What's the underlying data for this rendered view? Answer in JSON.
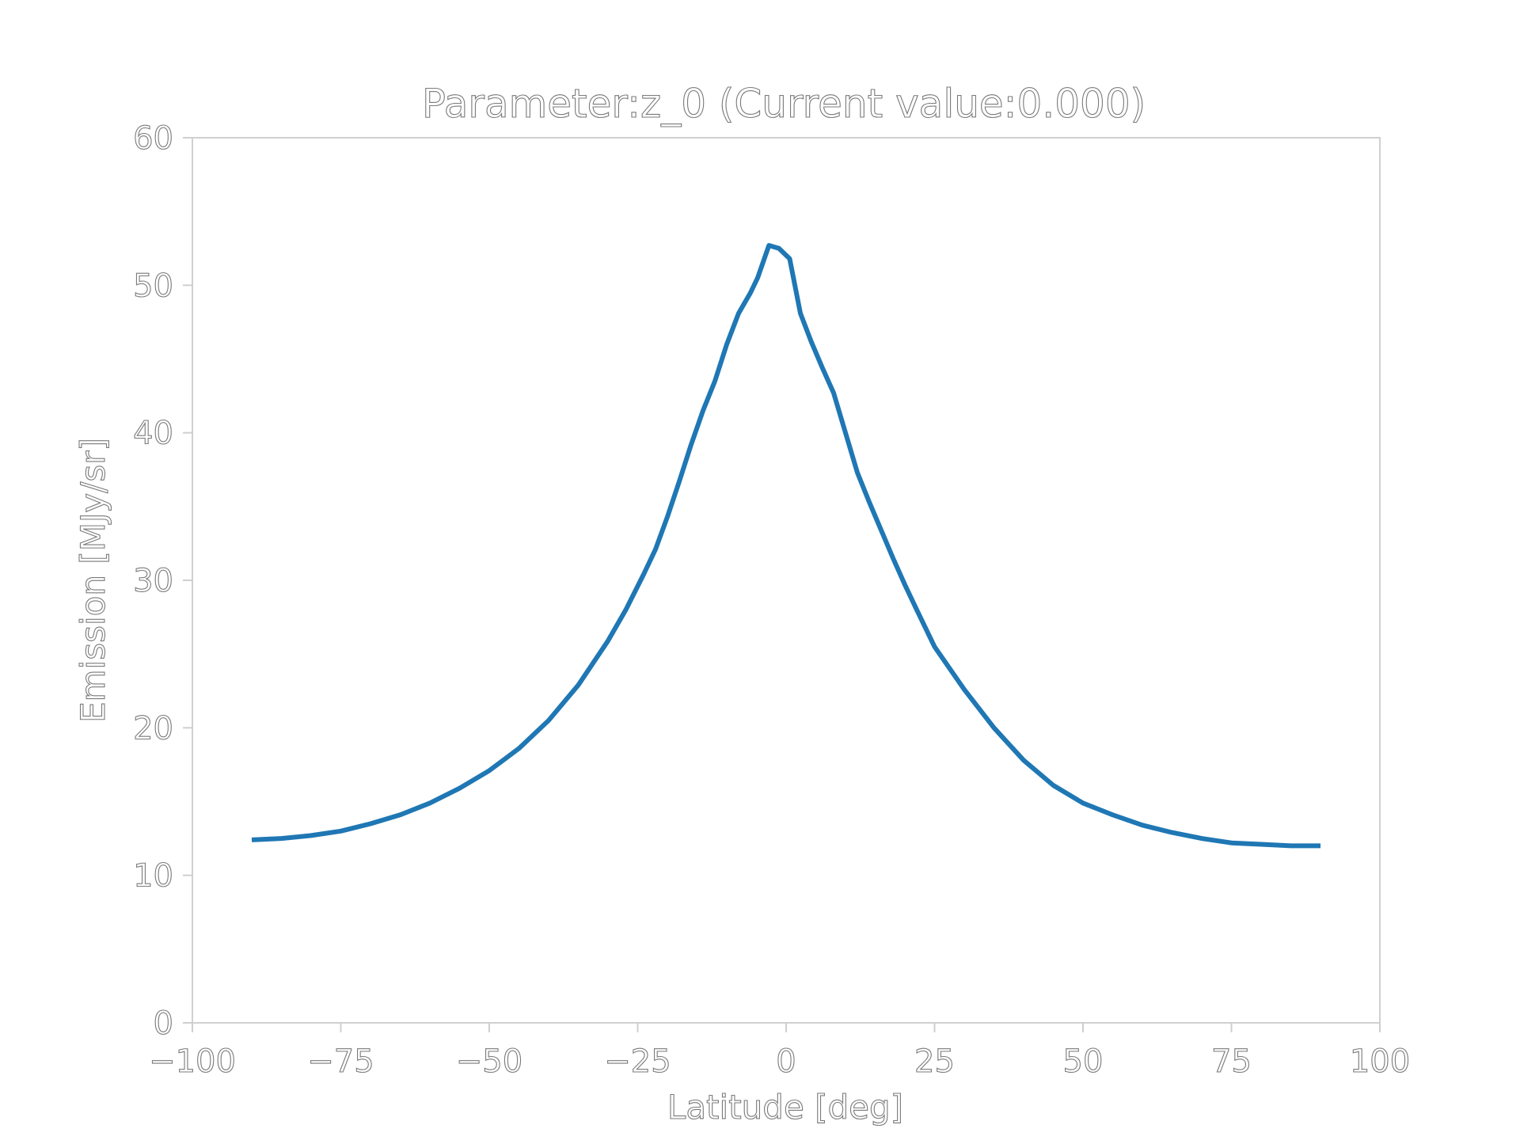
{
  "chart_data": {
    "type": "line",
    "title": "Parameter:z_0 (Current value:0.000)",
    "xlabel": "Latitude [deg]",
    "ylabel": "Emission [MJy/sr]",
    "xlim": [
      -100,
      100
    ],
    "ylim": [
      0,
      60
    ],
    "xticks": [
      -100,
      -75,
      -50,
      -25,
      0,
      25,
      50,
      75,
      100
    ],
    "xtick_labels": [
      "−100",
      "−75",
      "−50",
      "−25",
      "0",
      "25",
      "50",
      "75",
      "100"
    ],
    "yticks": [
      0,
      10,
      20,
      30,
      40,
      50,
      60
    ],
    "ytick_labels": [
      "0",
      "10",
      "20",
      "30",
      "40",
      "50",
      "60"
    ],
    "grid": false,
    "line_color": "#1f77b4",
    "series": [
      {
        "x": [
          -90,
          -85,
          -80,
          -75,
          -70,
          -65,
          -60,
          -55,
          -50,
          -45,
          -40,
          -35,
          -30,
          -27,
          -24,
          -22,
          -20,
          -18,
          -16,
          -14,
          -12,
          -10,
          -8,
          -6,
          -4.8,
          -2.9,
          -1.2,
          0.6,
          2.4,
          4.2,
          6.1,
          8.0,
          10,
          12,
          14,
          16,
          18,
          20,
          22,
          25,
          30,
          35,
          40,
          45,
          50,
          55,
          60,
          65,
          70,
          75,
          80,
          85,
          90
        ],
        "y": [
          12.4,
          12.5,
          12.7,
          13.0,
          13.5,
          14.1,
          14.9,
          15.9,
          17.1,
          18.6,
          20.5,
          22.9,
          25.9,
          28.0,
          30.4,
          32.1,
          34.3,
          36.7,
          39.2,
          41.5,
          43.5,
          46.0,
          48.1,
          49.5,
          50.5,
          52.7,
          52.5,
          51.8,
          48.1,
          46.2,
          44.4,
          42.7,
          40.0,
          37.3,
          35.3,
          33.4,
          31.5,
          29.7,
          28.0,
          25.5,
          22.6,
          20.0,
          17.8,
          16.1,
          14.9,
          14.1,
          13.4,
          12.9,
          12.5,
          12.2,
          12.1,
          12.0,
          12.0
        ]
      }
    ]
  }
}
